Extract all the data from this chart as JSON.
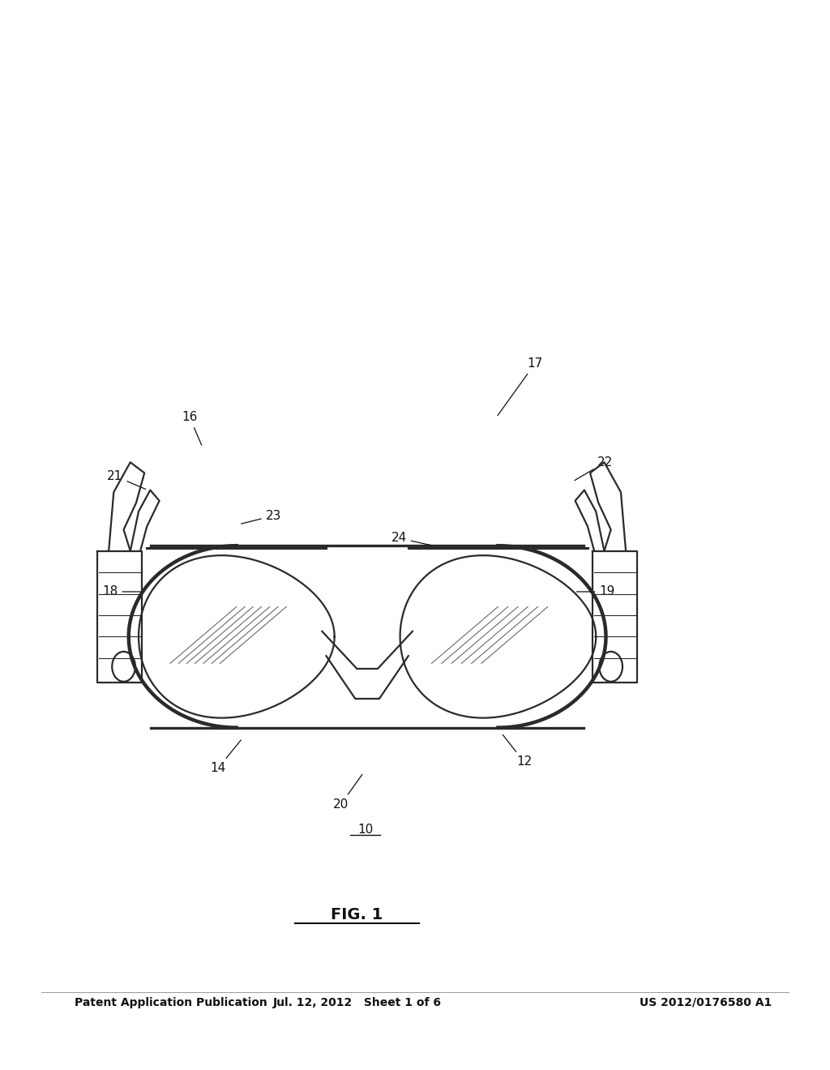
{
  "background_color": "#ffffff",
  "header_left": "Patent Application Publication",
  "header_mid": "Jul. 12, 2012   Sheet 1 of 6",
  "header_right": "US 2012/0176580 A1",
  "figure_label": "FIG. 1",
  "assembly_label": "10",
  "line_color": "#2a2a2a",
  "text_color": "#111111",
  "header_fontsize": 10,
  "label_fontsize": 11,
  "fig_label_fontsize": 14
}
